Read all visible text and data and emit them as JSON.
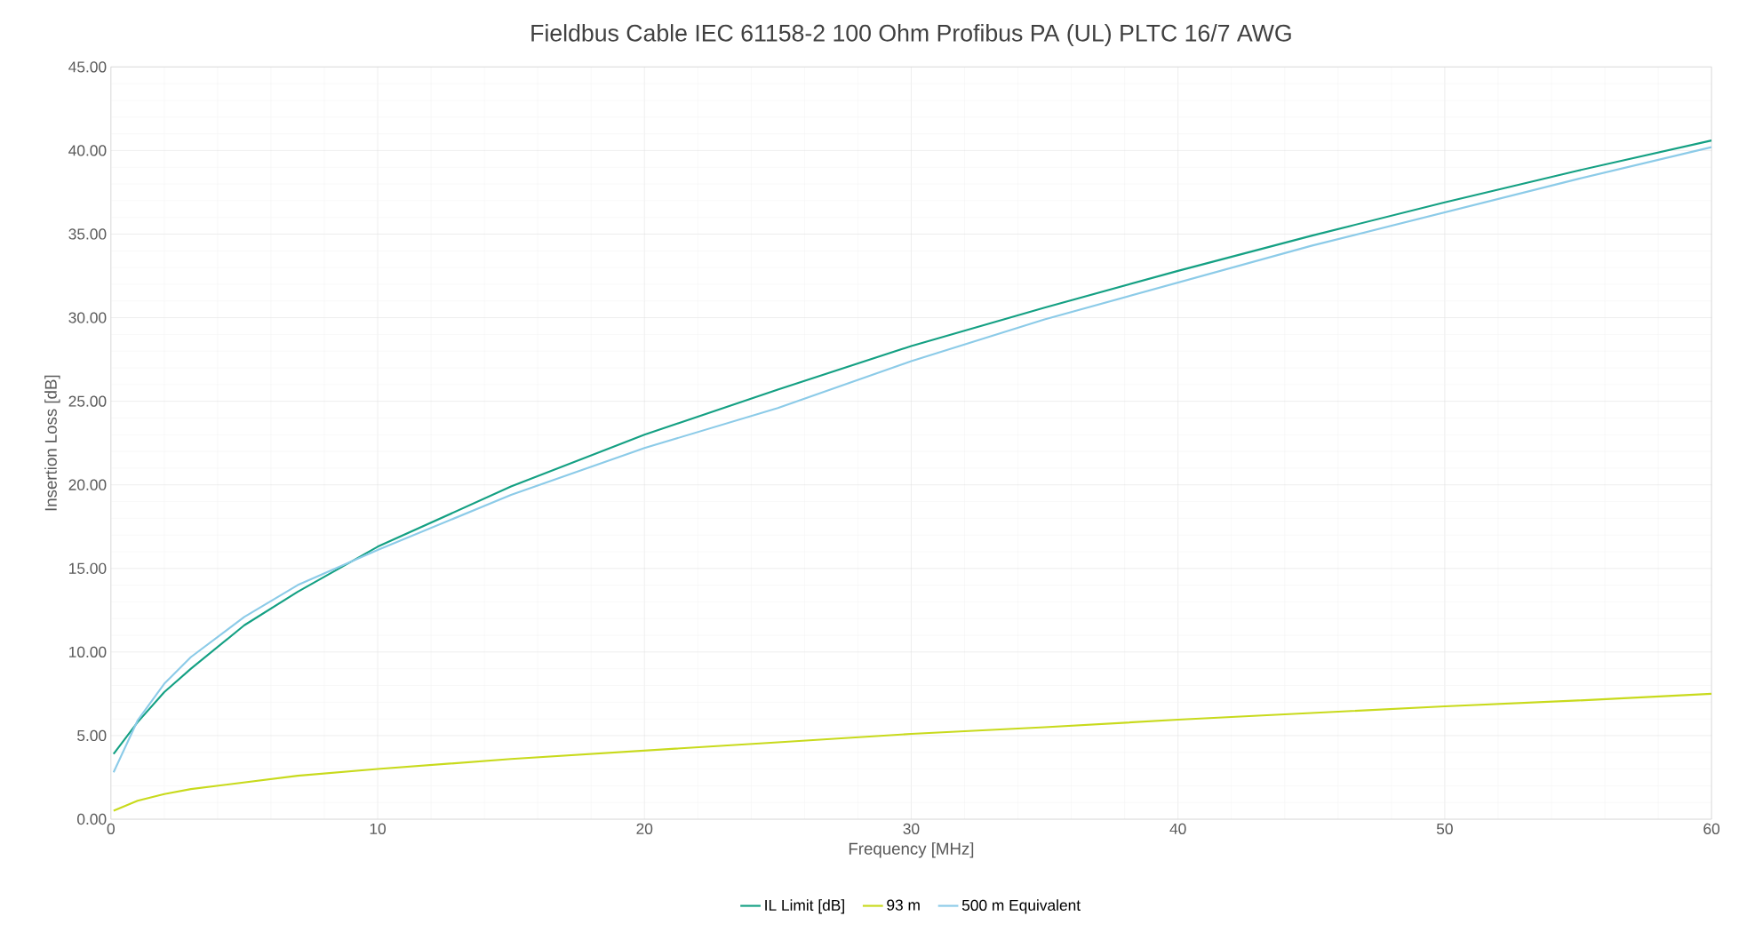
{
  "chart_data": {
    "type": "line",
    "title": "Fieldbus Cable IEC 61158-2 100 Ohm Profibus PA (UL) PLTC 16/7 AWG",
    "xlabel": "Frequency [MHz]",
    "ylabel": "Insertion Loss [dB]",
    "xlim": [
      0,
      60
    ],
    "xticks": [
      0,
      10,
      20,
      30,
      40,
      50,
      60
    ],
    "ylim": [
      0,
      45
    ],
    "yticks": [
      {
        "value": 0,
        "label": "0.00"
      },
      {
        "value": 5,
        "label": "5.00"
      },
      {
        "value": 10,
        "label": "10.00"
      },
      {
        "value": 15,
        "label": "15.00"
      },
      {
        "value": 20,
        "label": "20.00"
      },
      {
        "value": 25,
        "label": "25.00"
      },
      {
        "value": 30,
        "label": "30.00"
      },
      {
        "value": 35,
        "label": "35.00"
      },
      {
        "value": 40,
        "label": "40.00"
      },
      {
        "value": 45,
        "label": "45.00"
      }
    ],
    "grid": true,
    "legend": "bottom",
    "marker": "none",
    "line_style": "solid",
    "series": [
      {
        "name": "IL Limit [dB]",
        "color": "#14a083",
        "x": [
          0.1,
          1,
          2,
          3,
          5,
          7,
          10,
          15,
          20,
          25,
          30,
          35,
          40,
          45,
          50,
          55,
          60
        ],
        "values": [
          3.9,
          5.8,
          7.6,
          9.0,
          11.6,
          13.6,
          16.3,
          19.9,
          23.0,
          25.7,
          28.3,
          30.6,
          32.8,
          34.9,
          36.9,
          38.8,
          40.6
        ]
      },
      {
        "name": "93 m",
        "color": "#c8da1c",
        "x": [
          0.1,
          1,
          2,
          3,
          5,
          7,
          10,
          15,
          20,
          25,
          30,
          35,
          40,
          45,
          50,
          55,
          60
        ],
        "values": [
          0.5,
          1.1,
          1.5,
          1.8,
          2.2,
          2.6,
          3.0,
          3.6,
          4.1,
          4.6,
          5.1,
          5.5,
          5.95,
          6.35,
          6.75,
          7.1,
          7.5
        ]
      },
      {
        "name": "500 m Equivalent",
        "color": "#8ccbe8",
        "x": [
          0.1,
          1,
          2,
          3,
          5,
          7,
          10,
          15,
          20,
          25,
          30,
          35,
          40,
          45,
          50,
          55,
          60
        ],
        "values": [
          2.8,
          5.9,
          8.1,
          9.7,
          12.1,
          14.0,
          16.1,
          19.4,
          22.2,
          24.6,
          27.4,
          29.9,
          32.1,
          34.3,
          36.3,
          38.3,
          40.2
        ]
      }
    ]
  }
}
